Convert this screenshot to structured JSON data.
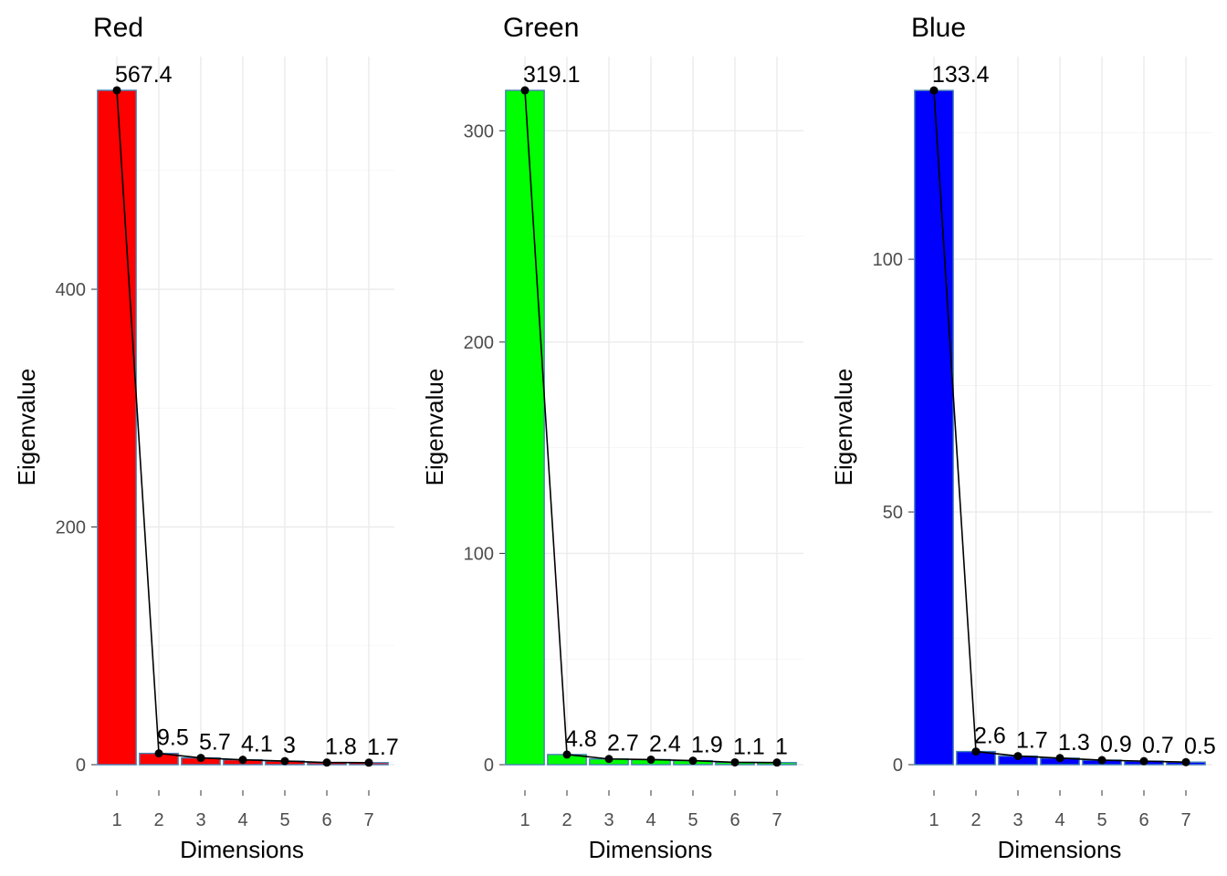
{
  "chart_data": [
    {
      "type": "bar",
      "title": "Red",
      "xlabel": "Dimensions",
      "ylabel": "Eigenvalue",
      "categories": [
        "1",
        "2",
        "3",
        "4",
        "5",
        "6",
        "7"
      ],
      "values": [
        567.4,
        9.5,
        5.7,
        4.1,
        3,
        1.8,
        1.7
      ],
      "data_labels": [
        "567.4",
        "9.5",
        "5.7",
        "4.1",
        "3",
        "1.8",
        "1.7"
      ],
      "yticks": [
        0,
        200,
        400
      ],
      "ylim": [
        0,
        595.8
      ],
      "bar_color": "#ff0000",
      "bar_outline": "#4682b4",
      "line_color": "#000000",
      "grid": true
    },
    {
      "type": "bar",
      "title": "Green",
      "xlabel": "Dimensions",
      "ylabel": "Eigenvalue",
      "categories": [
        "1",
        "2",
        "3",
        "4",
        "5",
        "6",
        "7"
      ],
      "values": [
        319.1,
        4.8,
        2.7,
        2.4,
        1.9,
        1.1,
        1
      ],
      "data_labels": [
        "319.1",
        "4.8",
        "2.7",
        "2.4",
        "1.9",
        "1.1",
        "1"
      ],
      "yticks": [
        0,
        100,
        200,
        300
      ],
      "ylim": [
        0,
        335.1
      ],
      "bar_color": "#00ff00",
      "bar_outline": "#4682b4",
      "line_color": "#000000",
      "grid": true
    },
    {
      "type": "bar",
      "title": "Blue",
      "xlabel": "Dimensions",
      "ylabel": "Eigenvalue",
      "categories": [
        "1",
        "2",
        "3",
        "4",
        "5",
        "6",
        "7"
      ],
      "values": [
        133.4,
        2.6,
        1.7,
        1.3,
        0.9,
        0.7,
        0.5
      ],
      "data_labels": [
        "133.4",
        "2.6",
        "1.7",
        "1.3",
        "0.9",
        "0.7",
        "0.5"
      ],
      "yticks": [
        0,
        50,
        100
      ],
      "ylim": [
        0,
        140.1
      ],
      "bar_color": "#0000ff",
      "bar_outline": "#4682b4",
      "line_color": "#000000",
      "grid": true
    }
  ]
}
